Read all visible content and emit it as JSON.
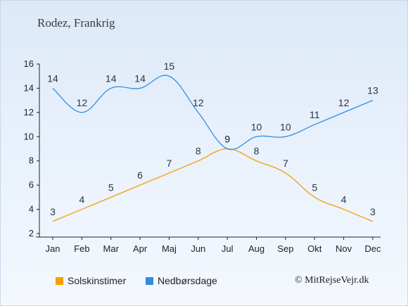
{
  "page": {
    "title": "Rodez, Frankrig",
    "credit": "© MitRejseVejr.dk"
  },
  "chart_data": {
    "type": "line",
    "categories": [
      "Jan",
      "Feb",
      "Mar",
      "Apr",
      "Maj",
      "Jun",
      "Jul",
      "Aug",
      "Sep",
      "Okt",
      "Nov",
      "Dec"
    ],
    "ylim": [
      2,
      16
    ],
    "yticks": [
      2,
      4,
      6,
      8,
      10,
      12,
      14,
      16
    ],
    "grid": false,
    "legend_position": "bottom",
    "series": [
      {
        "name": "Solskinstimer",
        "color": "#f5a000",
        "values": [
          3,
          4,
          5,
          6,
          7,
          8,
          9,
          8,
          7,
          5,
          4,
          3
        ]
      },
      {
        "name": "Nedbørsdage",
        "color": "#2e8fe0",
        "values": [
          14,
          12,
          14,
          14,
          15,
          12,
          9,
          10,
          10,
          11,
          12,
          13
        ]
      }
    ]
  }
}
